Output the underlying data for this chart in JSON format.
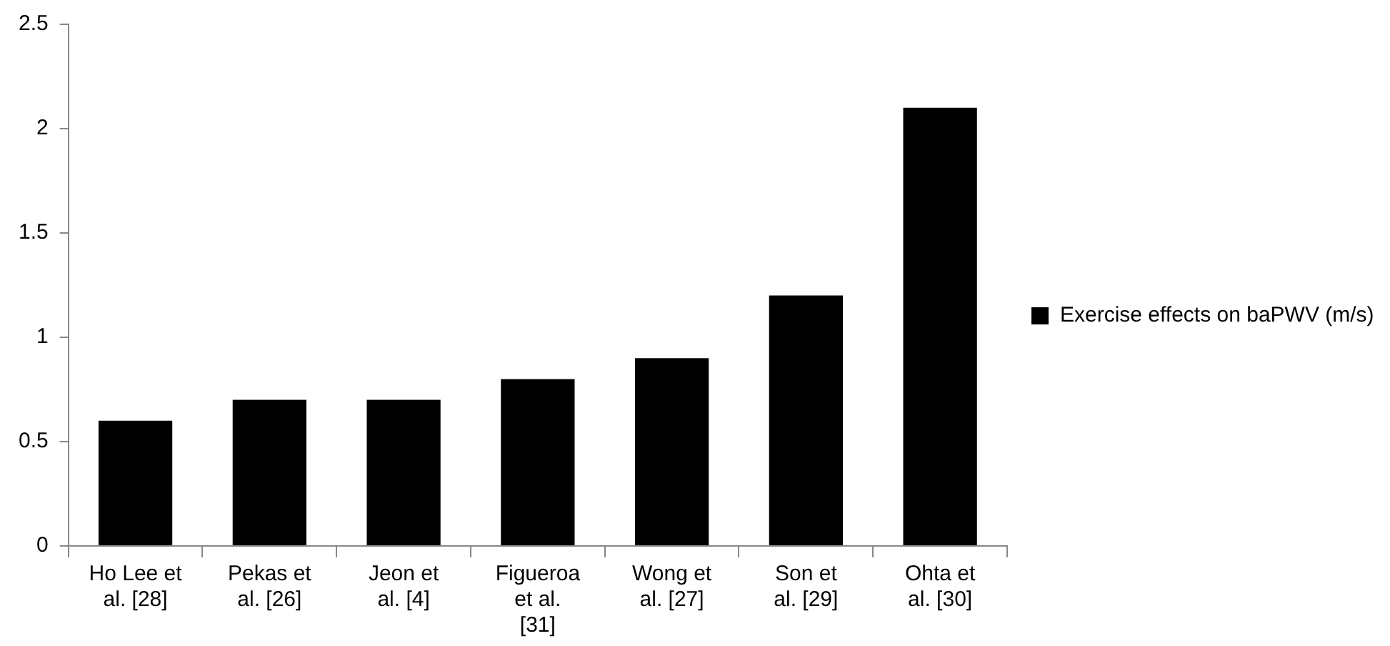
{
  "chart_data": {
    "type": "bar",
    "categories": [
      "Ho Lee et al. [28]",
      "Pekas et al. [26]",
      "Jeon et al. [4]",
      "Figueroa et al. [31]",
      "Wong et al. [27]",
      "Son et al. [29]",
      "Ohta et al. [30]"
    ],
    "series": [
      {
        "name": "Exercise effects on baPWV (m/s)",
        "color": "#000000",
        "values": [
          0.6,
          0.7,
          0.7,
          0.8,
          0.9,
          1.2,
          2.1
        ]
      }
    ],
    "ylim": [
      0,
      2.5
    ],
    "yticks": [
      0,
      0.5,
      1,
      1.5,
      2,
      2.5
    ],
    "grid": false,
    "legend": "right"
  }
}
